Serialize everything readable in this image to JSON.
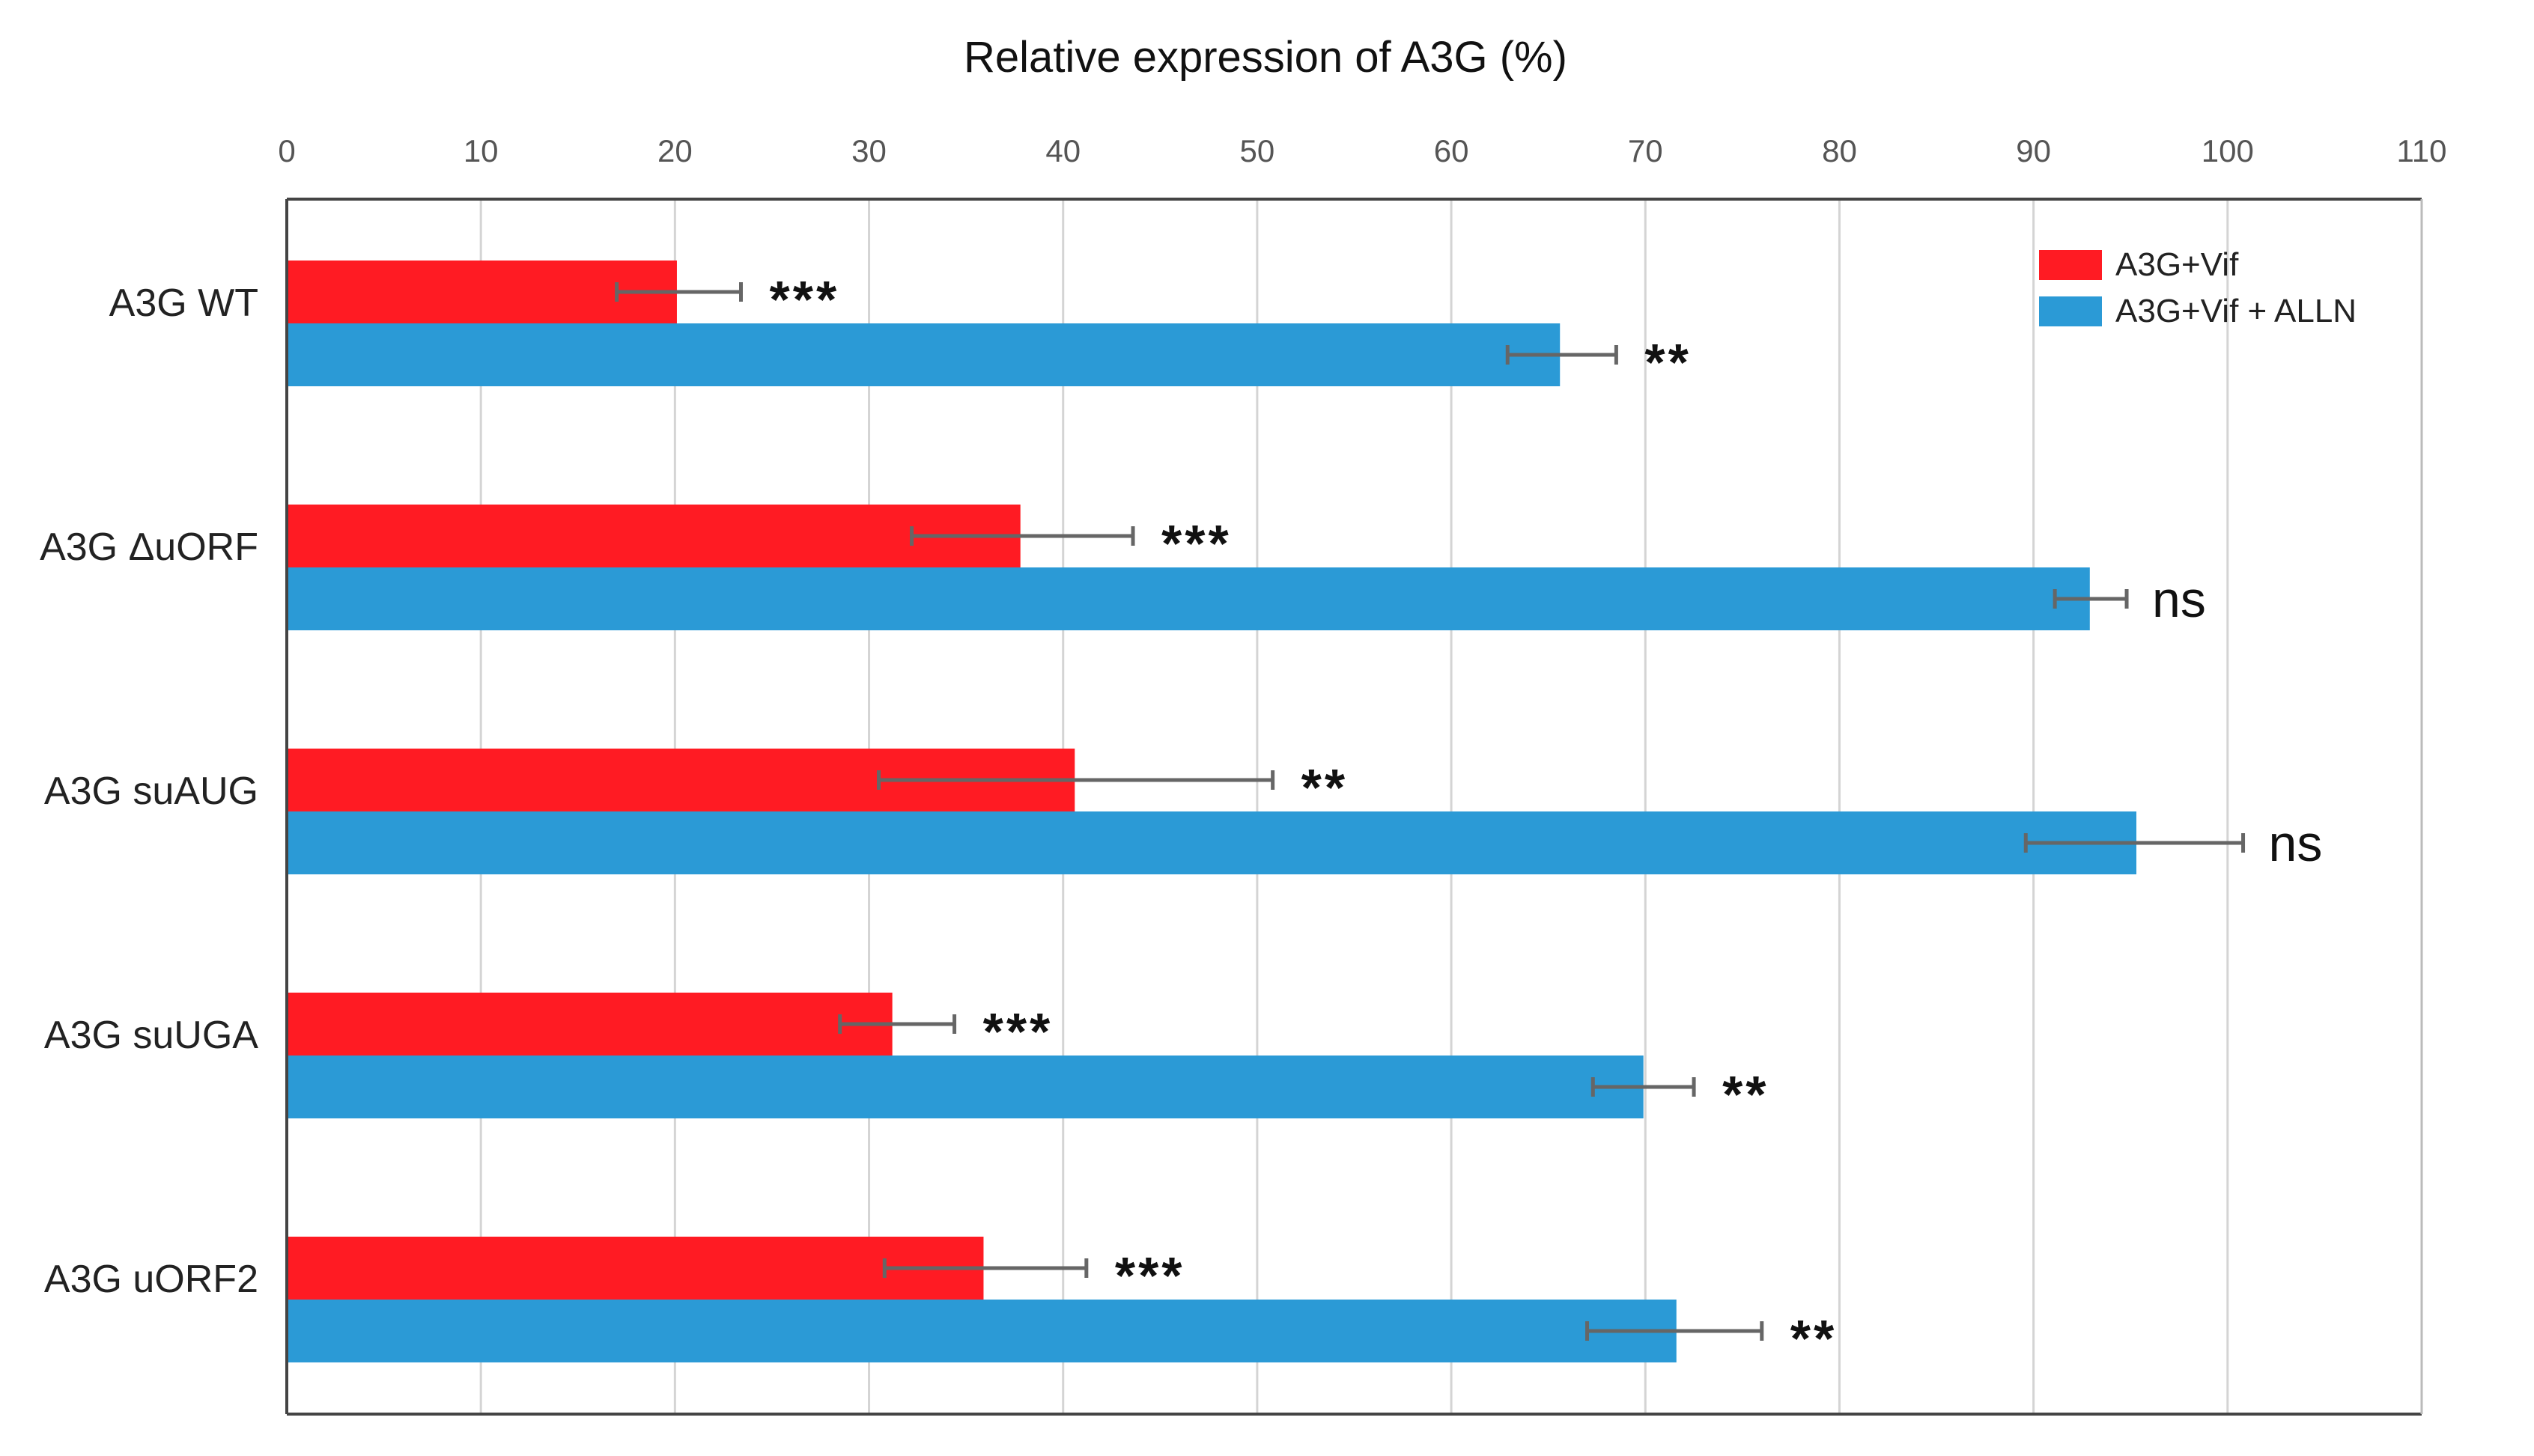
{
  "chart_data": {
    "type": "bar",
    "orientation": "horizontal",
    "title": "Relative expression of A3G (%)",
    "xlabel": "Relative expression of A3G (%)",
    "ylabel": "",
    "xlim": [
      0,
      110
    ],
    "xticks": [
      0,
      10,
      20,
      30,
      40,
      50,
      60,
      70,
      80,
      90,
      100,
      110
    ],
    "axis_position": "top",
    "grid": "vertical",
    "legend_position": "top-right",
    "categories": [
      "A3G WT",
      "A3G ΔuORF",
      "A3G suAUG",
      "A3G suUGA",
      "A3G uORF2"
    ],
    "series": [
      {
        "name": "A3G+Vif",
        "color": "#ff1b23",
        "values": [
          20.1,
          37.8,
          40.6,
          31.2,
          35.9
        ],
        "error_low": [
          17.0,
          32.2,
          30.5,
          28.5,
          30.8
        ],
        "error_high": [
          23.4,
          43.6,
          50.8,
          34.4,
          41.2
        ],
        "significance": [
          "***",
          "***",
          "**",
          "***",
          "***"
        ]
      },
      {
        "name": "A3G+Vif + ALLN",
        "color": "#2b9ad6",
        "values": [
          65.6,
          92.9,
          95.3,
          69.9,
          71.6
        ],
        "error_low": [
          62.9,
          91.1,
          89.6,
          67.3,
          67.0
        ],
        "error_high": [
          68.5,
          94.8,
          100.8,
          72.5,
          76.0
        ],
        "significance": [
          "**",
          "ns",
          "ns",
          "**",
          "**"
        ]
      }
    ]
  }
}
